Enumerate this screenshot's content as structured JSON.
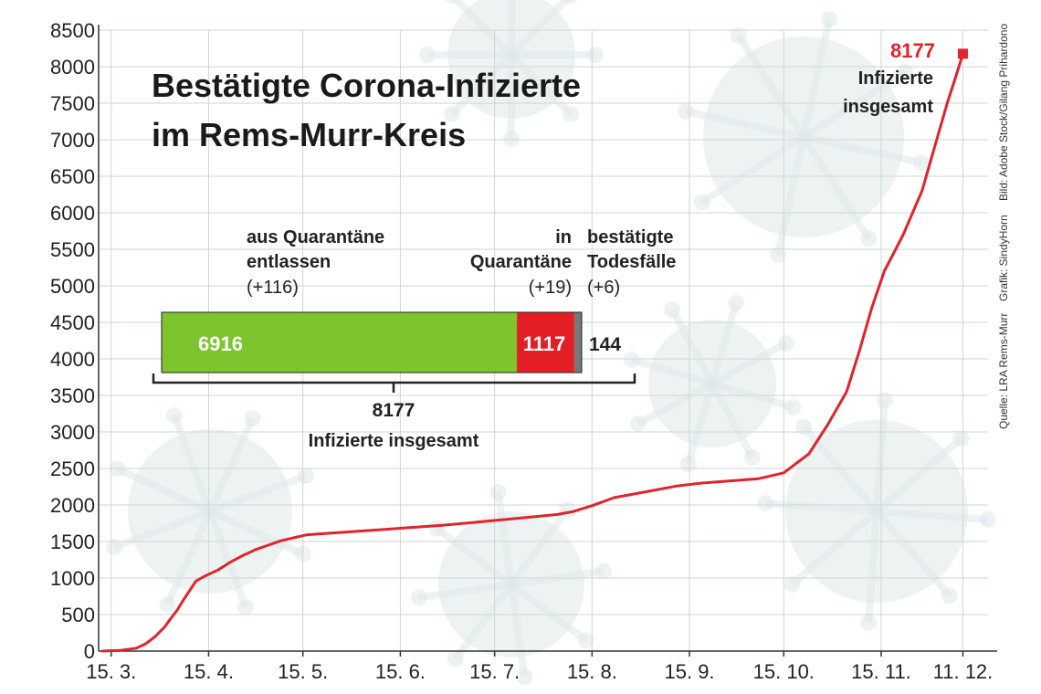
{
  "chart_data": {
    "type": "line",
    "title_lines": [
      "Bestätigte Corona-Infizierte",
      "im Rems-Murr-Kreis"
    ],
    "xlabel": "",
    "ylabel": "",
    "ylim": [
      0,
      8500
    ],
    "yticks": [
      0,
      500,
      1000,
      1500,
      2000,
      2500,
      3000,
      3500,
      4000,
      4500,
      5000,
      5500,
      6000,
      6500,
      7000,
      7500,
      8000,
      8500
    ],
    "xticks": [
      {
        "label": "15. 3.",
        "day": 0
      },
      {
        "label": "15. 4.",
        "day": 31
      },
      {
        "label": "15. 5.",
        "day": 61
      },
      {
        "label": "15. 6.",
        "day": 92
      },
      {
        "label": "15. 7.",
        "day": 122
      },
      {
        "label": "15. 8.",
        "day": 153
      },
      {
        "label": "15. 9.",
        "day": 184
      },
      {
        "label": "15. 10.",
        "day": 214
      },
      {
        "label": "15. 11.",
        "day": 245
      },
      {
        "label": "11. 12.",
        "day": 271
      }
    ],
    "x_range_days": [
      -4,
      279
    ],
    "grid": true,
    "color": "#e0242c",
    "series": [
      {
        "points": [
          [
            -3,
            0
          ],
          [
            3,
            10
          ],
          [
            8,
            40
          ],
          [
            11,
            100
          ],
          [
            14,
            200
          ],
          [
            17,
            330
          ],
          [
            19,
            450
          ],
          [
            21,
            560
          ],
          [
            23,
            700
          ],
          [
            25,
            830
          ],
          [
            27,
            960
          ],
          [
            30,
            1030
          ],
          [
            34,
            1110
          ],
          [
            38,
            1220
          ],
          [
            42,
            1310
          ],
          [
            46,
            1390
          ],
          [
            50,
            1450
          ],
          [
            54,
            1510
          ],
          [
            58,
            1550
          ],
          [
            62,
            1590
          ],
          [
            68,
            1610
          ],
          [
            75,
            1630
          ],
          [
            85,
            1660
          ],
          [
            95,
            1690
          ],
          [
            105,
            1720
          ],
          [
            115,
            1760
          ],
          [
            125,
            1800
          ],
          [
            135,
            1840
          ],
          [
            142,
            1870
          ],
          [
            147,
            1910
          ],
          [
            153,
            1990
          ],
          [
            160,
            2100
          ],
          [
            170,
            2180
          ],
          [
            180,
            2260
          ],
          [
            188,
            2300
          ],
          [
            197,
            2330
          ],
          [
            206,
            2360
          ],
          [
            214,
            2440
          ],
          [
            222,
            2700
          ],
          [
            228,
            3100
          ],
          [
            234,
            3550
          ],
          [
            238,
            4100
          ],
          [
            242,
            4700
          ],
          [
            246,
            5200
          ],
          [
            252,
            5700
          ],
          [
            258,
            6300
          ],
          [
            262,
            6900
          ],
          [
            266,
            7500
          ],
          [
            269,
            7900
          ],
          [
            271,
            8177
          ]
        ]
      }
    ],
    "end_marker": {
      "value": "8177",
      "caption_lines": [
        "Infizierte",
        "insgesamt"
      ]
    }
  },
  "breakdown": {
    "total": 8177,
    "total_label": "8177",
    "total_caption": "Infizierte insgesamt",
    "segments": [
      {
        "name_lines": [
          "aus Quarantäne",
          "entlassen"
        ],
        "change": "(+116)",
        "value": 6916,
        "value_label": "6916",
        "color": "#7cc52e"
      },
      {
        "name_lines": [
          "in",
          "Quarantäne"
        ],
        "change": "(+19)",
        "value": 1117,
        "value_label": "1117",
        "color": "#e31e24"
      },
      {
        "name_lines": [
          "bestätigte",
          "Todesfälle"
        ],
        "change": "(+6)",
        "value": 144,
        "value_label": "144",
        "color": "#777777"
      }
    ]
  },
  "credits": [
    "Quelle: LRA Rems-Murr",
    "Grafik: SindyHorn",
    "Bild: Adobe Stock/Gilang Prihardono"
  ]
}
